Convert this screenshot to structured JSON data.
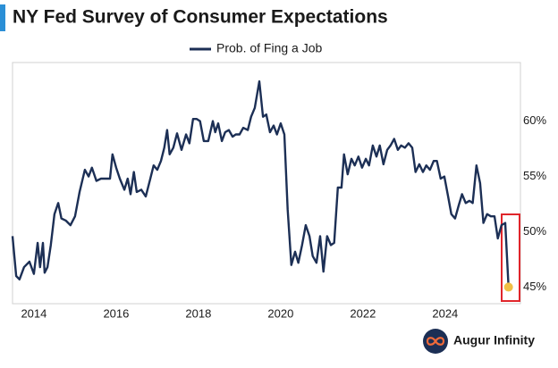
{
  "chart_data": {
    "type": "line",
    "title": "NY Fed Survey of Consumer Expectations",
    "brand": "Augur Infinity",
    "x": [
      2013.48,
      2013.57,
      2013.65,
      2013.76,
      2013.89,
      2014.0,
      2014.09,
      2014.15,
      2014.22,
      2014.26,
      2014.33,
      2014.41,
      2014.5,
      2014.59,
      2014.67,
      2014.78,
      2014.89,
      2015.0,
      2015.11,
      2015.24,
      2015.33,
      2015.41,
      2015.52,
      2015.63,
      2015.74,
      2015.85,
      2015.91,
      2016.0,
      2016.09,
      2016.2,
      2016.28,
      2016.35,
      2016.43,
      2016.5,
      2016.61,
      2016.72,
      2016.83,
      2016.91,
      2017.0,
      2017.09,
      2017.17,
      2017.24,
      2017.3,
      2017.39,
      2017.48,
      2017.59,
      2017.7,
      2017.78,
      2017.87,
      2017.96,
      2018.04,
      2018.13,
      2018.24,
      2018.35,
      2018.41,
      2018.48,
      2018.57,
      2018.65,
      2018.74,
      2018.83,
      2018.91,
      2019.0,
      2019.09,
      2019.2,
      2019.28,
      2019.37,
      2019.48,
      2019.57,
      2019.65,
      2019.74,
      2019.83,
      2019.91,
      2020.0,
      2020.09,
      2020.17,
      2020.26,
      2020.35,
      2020.43,
      2020.52,
      2020.61,
      2020.7,
      2020.78,
      2020.87,
      2020.96,
      2021.04,
      2021.13,
      2021.22,
      2021.3,
      2021.39,
      2021.48,
      2021.54,
      2021.63,
      2021.72,
      2021.8,
      2021.89,
      2021.98,
      2022.07,
      2022.15,
      2022.24,
      2022.33,
      2022.41,
      2022.5,
      2022.59,
      2022.67,
      2022.76,
      2022.85,
      2022.93,
      2023.02,
      2023.11,
      2023.2,
      2023.28,
      2023.37,
      2023.46,
      2023.54,
      2023.63,
      2023.72,
      2023.8,
      2023.89,
      2023.98,
      2024.07,
      2024.15,
      2024.24,
      2024.33,
      2024.41,
      2024.5,
      2024.59,
      2024.67,
      2024.76,
      2024.85,
      2024.93,
      2025.02,
      2025.11,
      2025.2,
      2025.28,
      2025.37,
      2025.46,
      2025.54
    ],
    "series": [
      {
        "name": "Prob. of Fing a Job",
        "color": "#1c2f55",
        "values": [
          49.6,
          46.0,
          45.7,
          46.8,
          47.3,
          46.2,
          49.0,
          46.8,
          49.0,
          46.3,
          46.8,
          48.8,
          51.6,
          52.6,
          51.2,
          51.0,
          50.6,
          51.4,
          53.6,
          55.6,
          55.0,
          55.8,
          54.6,
          54.8,
          54.8,
          54.8,
          57.0,
          55.8,
          54.8,
          53.8,
          54.8,
          53.4,
          55.4,
          53.6,
          53.8,
          53.2,
          54.8,
          56.0,
          55.6,
          56.4,
          57.6,
          59.2,
          57.0,
          57.6,
          58.9,
          57.4,
          58.8,
          58.0,
          60.2,
          60.2,
          60.0,
          58.2,
          58.2,
          60.0,
          59.0,
          59.8,
          58.2,
          59.0,
          59.2,
          58.6,
          58.8,
          58.8,
          59.4,
          59.2,
          60.4,
          61.2,
          63.6,
          60.4,
          60.6,
          59.0,
          59.6,
          58.8,
          59.8,
          58.8,
          52.0,
          47.0,
          48.2,
          47.2,
          48.8,
          50.6,
          49.6,
          47.8,
          47.2,
          49.6,
          46.4,
          49.6,
          48.8,
          49.0,
          54.0,
          54.0,
          57.0,
          55.2,
          56.6,
          56.0,
          56.8,
          55.8,
          56.6,
          56.0,
          57.8,
          56.8,
          57.8,
          56.1,
          57.4,
          57.8,
          58.4,
          57.4,
          57.8,
          57.6,
          58.0,
          57.6,
          55.4,
          56.1,
          55.4,
          56.0,
          55.6,
          56.4,
          56.4,
          54.8,
          55.0,
          53.2,
          51.6,
          51.2,
          52.4,
          53.4,
          52.6,
          52.8,
          52.6,
          56.0,
          54.4,
          50.8,
          51.6,
          51.4,
          51.4,
          49.4,
          50.6,
          50.8,
          45.0
        ]
      }
    ],
    "xlim": [
      2013.48,
      2025.83
    ],
    "xticks": [
      2014,
      2016,
      2018,
      2020,
      2022,
      2024
    ],
    "ylim": [
      43.5,
      65.3
    ],
    "yticks": [
      {
        "value": 45,
        "label": "45%"
      },
      {
        "value": 50,
        "label": "50%"
      },
      {
        "value": 55,
        "label": "55%"
      },
      {
        "value": 60,
        "label": "60%"
      }
    ],
    "grid": false,
    "legend": "top"
  }
}
